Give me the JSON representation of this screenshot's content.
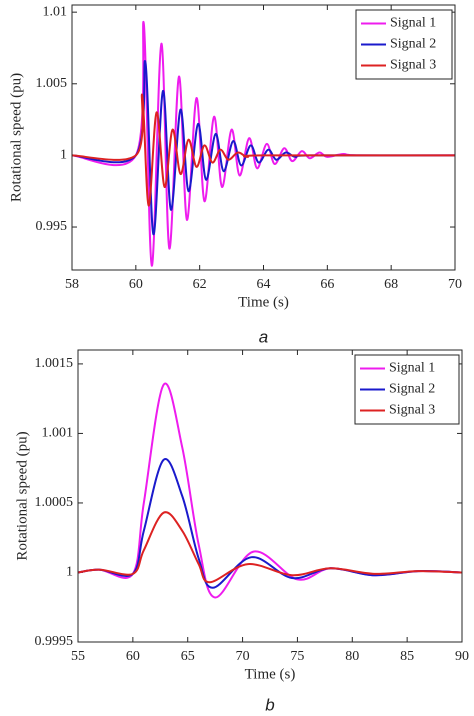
{
  "chart_data": [
    {
      "type": "line",
      "caption": "a",
      "xlabel": "Time (s)",
      "ylabel": "Rotational speed (pu)",
      "xlim": [
        58,
        70
      ],
      "xticks": [
        58,
        60,
        62,
        64,
        66,
        68,
        70
      ],
      "ylim": [
        0.992,
        1.0105
      ],
      "yticks": [
        0.995,
        1,
        1.005,
        1.01
      ],
      "grid": false,
      "legend": "northeast",
      "series": [
        {
          "name": "Signal 1",
          "color": "#ee1cee",
          "x": [
            58,
            60,
            60.25,
            60.5,
            60.8,
            61.05,
            61.35,
            61.6,
            61.9,
            62.15,
            62.45,
            62.7,
            63,
            63.25,
            63.55,
            63.8,
            64.1,
            64.35,
            64.65,
            64.9,
            65.2,
            65.45,
            65.75,
            66,
            66.5,
            67,
            70
          ],
          "values": [
            1,
            1,
            1.0092,
            0.9923,
            1.0078,
            0.9935,
            1.0055,
            0.9955,
            1.004,
            0.9968,
            1.0027,
            0.9978,
            1.0018,
            0.9986,
            1.0012,
            0.9991,
            1.0008,
            0.9994,
            1.0005,
            0.9996,
            1.0003,
            0.9998,
            1.0002,
            0.9999,
            1.0001,
            1,
            1
          ]
        },
        {
          "name": "Signal 2",
          "color": "#1a1acc",
          "x": [
            58,
            60,
            60.3,
            60.55,
            60.85,
            61.1,
            61.4,
            61.65,
            61.95,
            62.2,
            62.5,
            62.75,
            63.05,
            63.3,
            63.6,
            63.85,
            64.15,
            64.4,
            64.7,
            65,
            65.5,
            70
          ],
          "values": [
            1,
            1,
            1.0065,
            0.9945,
            1.0045,
            0.9962,
            1.0032,
            0.9975,
            1.0022,
            0.9983,
            1.0015,
            0.9989,
            1.001,
            0.9993,
            1.0007,
            0.9995,
            1.0004,
            0.9997,
            1.0002,
            0.9999,
            1,
            1
          ]
        },
        {
          "name": "Signal 3",
          "color": "#dd2222",
          "x": [
            58,
            60,
            60.2,
            60.4,
            60.65,
            60.9,
            61.15,
            61.4,
            61.65,
            61.9,
            62.15,
            62.4,
            62.65,
            62.9,
            63.2,
            63.5,
            64,
            70
          ],
          "values": [
            1,
            1,
            1.0042,
            0.9965,
            1.003,
            0.9978,
            1.0018,
            0.9987,
            1.0011,
            0.9992,
            1.0007,
            0.9995,
            1.0004,
            0.9997,
            1.0002,
            0.9999,
            1,
            1
          ]
        }
      ]
    },
    {
      "type": "line",
      "caption": "b",
      "xlabel": "Time (s)",
      "ylabel": "Rotational speed (pu)",
      "xlim": [
        55,
        90
      ],
      "xticks": [
        55,
        60,
        65,
        70,
        75,
        80,
        85,
        90
      ],
      "ylim": [
        0.9995,
        1.0016
      ],
      "yticks": [
        0.9995,
        1,
        1.0005,
        1.001,
        1.0015
      ],
      "grid": false,
      "legend": "northeast",
      "series": [
        {
          "name": "Signal 1",
          "color": "#ee1cee",
          "x": [
            55,
            57,
            60,
            61,
            62.8,
            64.5,
            66,
            67.5,
            71,
            75,
            78,
            82,
            86,
            90
          ],
          "values": [
            1,
            1.00002,
            0.99999,
            1.0005,
            1.00135,
            1.0009,
            1.0002,
            0.99982,
            1.00015,
            0.99995,
            1.00003,
            0.99998,
            1.00001,
            1
          ]
        },
        {
          "name": "Signal 2",
          "color": "#1a1acc",
          "x": [
            55,
            57,
            60,
            61,
            62.8,
            64.5,
            66,
            67.3,
            70.8,
            74.5,
            78,
            82,
            86,
            90
          ],
          "values": [
            1,
            1.00002,
            0.99999,
            1.0003,
            1.00081,
            1.00055,
            1.0001,
            0.99989,
            1.00011,
            0.99996,
            1.00003,
            0.99998,
            1.00001,
            1
          ]
        },
        {
          "name": "Signal 3",
          "color": "#dd2222",
          "x": [
            55,
            57,
            60,
            61,
            62.8,
            64.5,
            66,
            67,
            70.5,
            74.5,
            78,
            82,
            86,
            90
          ],
          "values": [
            1,
            1.00002,
            0.99999,
            1.00016,
            1.00043,
            1.0003,
            1.00006,
            0.99993,
            1.00006,
            0.99998,
            1.00003,
            0.99999,
            1.00001,
            1
          ]
        }
      ]
    }
  ]
}
